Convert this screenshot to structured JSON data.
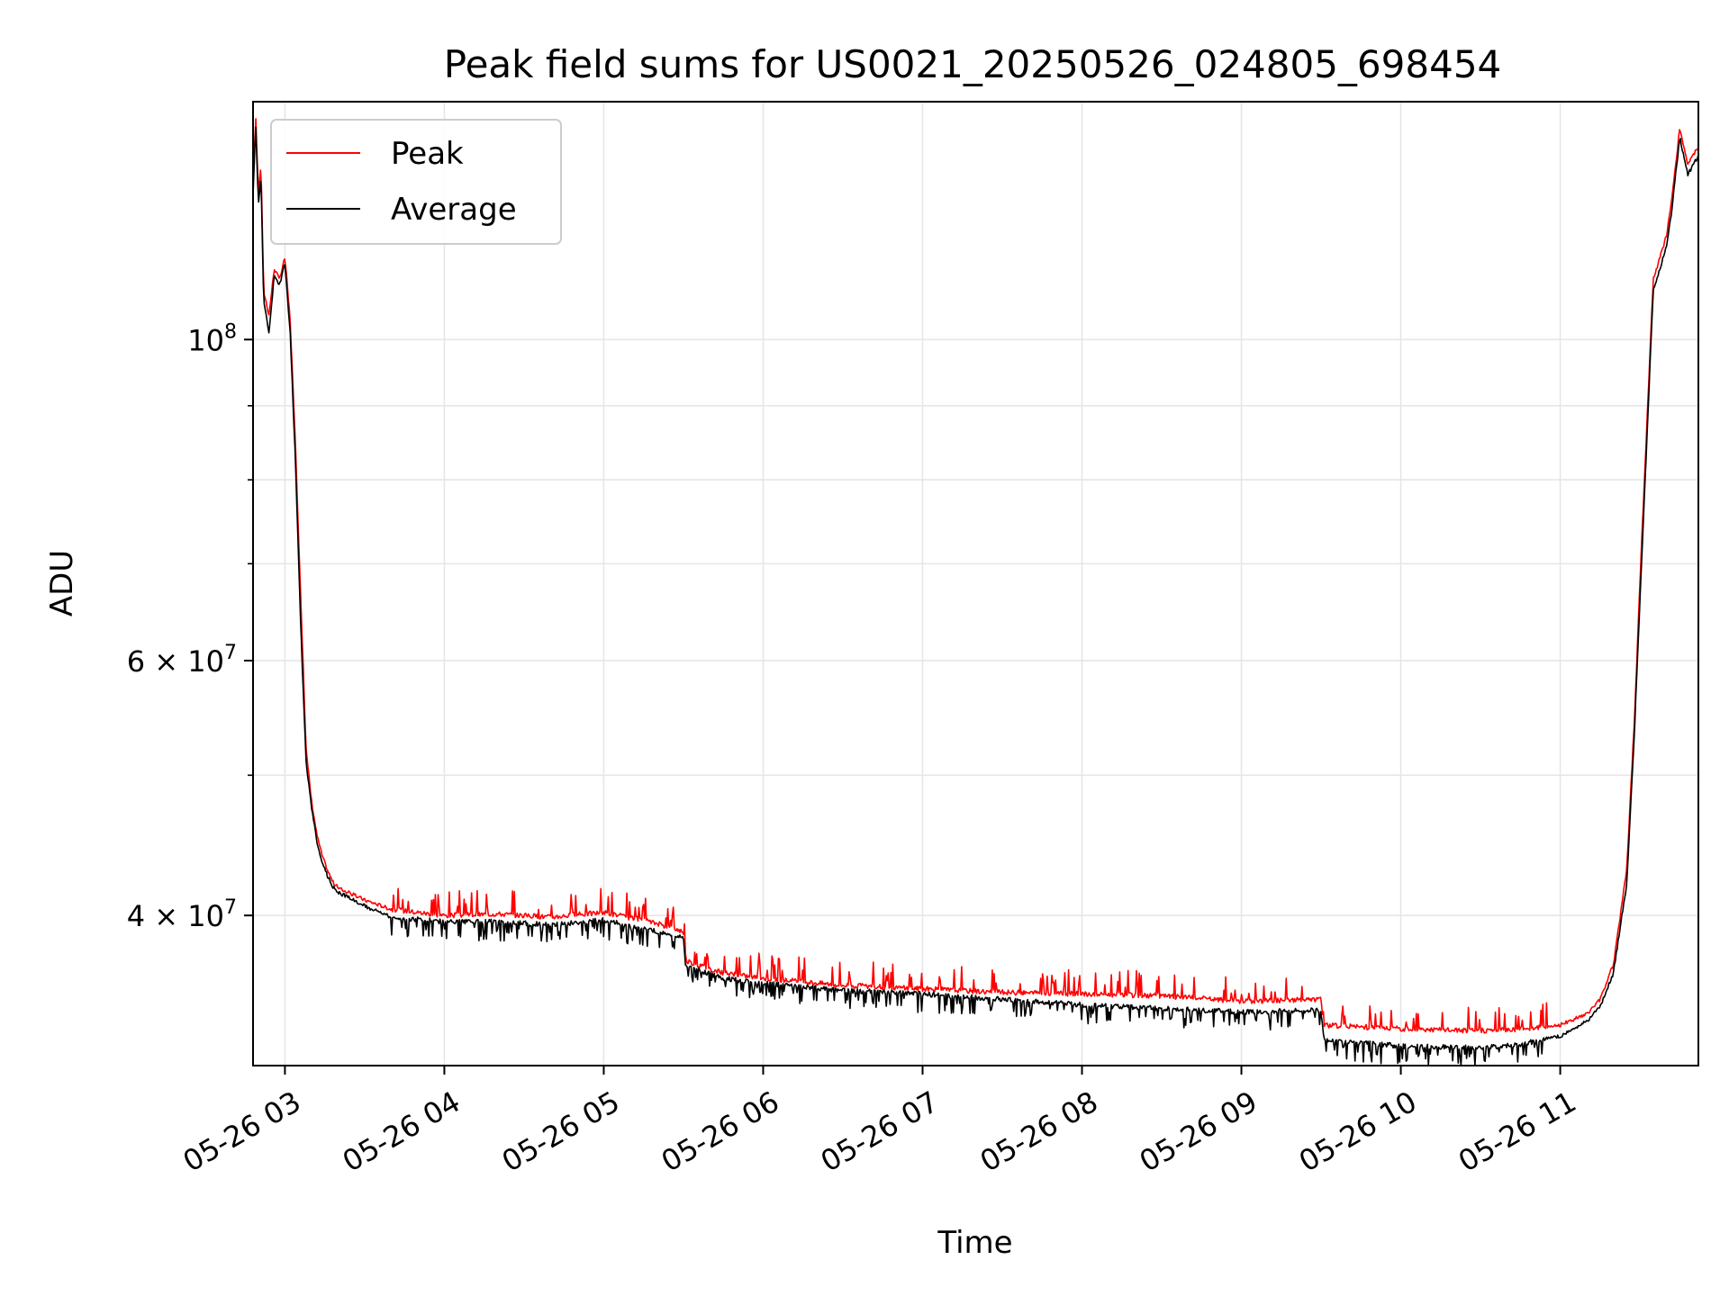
{
  "chart_data": {
    "type": "line",
    "title": "Peak field sums for US0021_20250526_024805_698454",
    "xlabel": "Time",
    "ylabel": "ADU",
    "y_scale": "log",
    "ylim": [
      31500000,
      146000000
    ],
    "x_range": [
      "05-26 02:48",
      "05-26 11:52"
    ],
    "grid": true,
    "legend_position": "top-left",
    "x_ticks": [
      "05-26 03",
      "05-26 04",
      "05-26 05",
      "05-26 06",
      "05-26 07",
      "05-26 08",
      "05-26 09",
      "05-26 10",
      "05-26 11"
    ],
    "x_tick_times": [
      "05-26 03:00",
      "05-26 04:00",
      "05-26 05:00",
      "05-26 06:00",
      "05-26 07:00",
      "05-26 08:00",
      "05-26 09:00",
      "05-26 10:00",
      "05-26 11:00"
    ],
    "y_ticks": [
      {
        "value": 40000000,
        "label": "4 × 10",
        "exp": "7"
      },
      {
        "value": 60000000,
        "label": "6 × 10",
        "exp": "7"
      },
      {
        "value": 100000000,
        "label": "10",
        "exp": "8"
      }
    ],
    "y_minor_ticks": [
      50000000,
      70000000,
      80000000,
      90000000
    ],
    "series": [
      {
        "name": "Peak",
        "color": "#ff0000",
        "x": [
          "05-26 02:48",
          "05-26 02:49",
          "05-26 02:50",
          "05-26 02:51",
          "05-26 02:52",
          "05-26 02:53",
          "05-26 02:54",
          "05-26 02:56",
          "05-26 02:58",
          "05-26 03:00",
          "05-26 03:02",
          "05-26 03:04",
          "05-26 03:06",
          "05-26 03:08",
          "05-26 03:10",
          "05-26 03:12",
          "05-26 03:14",
          "05-26 03:16",
          "05-26 03:18",
          "05-26 03:20",
          "05-26 03:25",
          "05-26 03:30",
          "05-26 03:40",
          "05-26 04:00",
          "05-26 04:20",
          "05-26 04:40",
          "05-26 05:00",
          "05-26 05:20",
          "05-26 05:30",
          "05-26 05:31",
          "05-26 05:45",
          "05-26 06:00",
          "05-26 06:30",
          "05-26 07:00",
          "05-26 07:30",
          "05-26 08:00",
          "05-26 08:30",
          "05-26 09:00",
          "05-26 09:30",
          "05-26 09:31",
          "05-26 10:00",
          "05-26 10:30",
          "05-26 10:45",
          "05-26 11:00",
          "05-26 11:10",
          "05-26 11:15",
          "05-26 11:20",
          "05-26 11:25",
          "05-26 11:28",
          "05-26 11:30",
          "05-26 11:35",
          "05-26 11:40",
          "05-26 11:42",
          "05-26 11:45",
          "05-26 11:48",
          "05-26 11:52"
        ],
        "values": [
          128000000,
          143000000,
          126000000,
          132000000,
          108000000,
          106000000,
          104000000,
          112000000,
          110000000,
          114000000,
          103000000,
          84000000,
          66000000,
          52000000,
          48000000,
          45500000,
          44000000,
          43000000,
          42200000,
          41800000,
          41400000,
          41000000,
          40400000,
          40000000,
          40100000,
          39900000,
          40200000,
          39500000,
          39000000,
          37200000,
          36500000,
          36200000,
          35800000,
          35600000,
          35400000,
          35300000,
          35200000,
          34900000,
          35000000,
          33600000,
          33400000,
          33300000,
          33400000,
          33600000,
          34200000,
          35000000,
          37000000,
          43000000,
          55000000,
          68000000,
          110000000,
          118000000,
          125000000,
          140000000,
          132000000,
          136000000
        ],
        "noise_spikes": "frequent upward spikes of ~1-3% between 05-26 03:40 and 05-26 09:30"
      },
      {
        "name": "Average",
        "color": "#000000",
        "x": [
          "05-26 02:48",
          "05-26 02:49",
          "05-26 02:50",
          "05-26 02:51",
          "05-26 02:52",
          "05-26 02:53",
          "05-26 02:54",
          "05-26 02:56",
          "05-26 02:58",
          "05-26 03:00",
          "05-26 03:02",
          "05-26 03:04",
          "05-26 03:06",
          "05-26 03:08",
          "05-26 03:10",
          "05-26 03:12",
          "05-26 03:14",
          "05-26 03:16",
          "05-26 03:18",
          "05-26 03:20",
          "05-26 03:25",
          "05-26 03:30",
          "05-26 03:40",
          "05-26 04:00",
          "05-26 04:20",
          "05-26 04:40",
          "05-26 05:00",
          "05-26 05:20",
          "05-26 05:30",
          "05-26 05:31",
          "05-26 05:45",
          "05-26 06:00",
          "05-26 06:30",
          "05-26 07:00",
          "05-26 07:30",
          "05-26 08:00",
          "05-26 08:30",
          "05-26 09:00",
          "05-26 09:30",
          "05-26 09:31",
          "05-26 10:00",
          "05-26 10:30",
          "05-26 10:45",
          "05-26 11:00",
          "05-26 11:10",
          "05-26 11:15",
          "05-26 11:20",
          "05-26 11:25",
          "05-26 11:28",
          "05-26 11:30",
          "05-26 11:35",
          "05-26 11:40",
          "05-26 11:42",
          "05-26 11:45",
          "05-26 11:48",
          "05-26 11:52"
        ],
        "values": [
          126000000,
          141000000,
          124000000,
          130000000,
          106000000,
          104000000,
          101000000,
          111000000,
          109000000,
          113000000,
          101000000,
          82000000,
          63000000,
          51000000,
          47500000,
          45000000,
          43500000,
          42600000,
          41900000,
          41500000,
          41100000,
          40600000,
          39900000,
          39600000,
          39600000,
          39400000,
          39700000,
          39000000,
          38600000,
          36900000,
          36200000,
          35900000,
          35500000,
          35300000,
          35000000,
          34700000,
          34500000,
          34300000,
          34400000,
          32800000,
          32500000,
          32400000,
          32600000,
          33000000,
          33800000,
          34600000,
          36500000,
          42000000,
          54000000,
          66000000,
          108000000,
          116000000,
          123000000,
          138000000,
          130000000,
          134000000
        ],
        "noise_spikes": "frequent downward spikes of ~1-3% between 05-26 03:40 and 05-26 10:50"
      }
    ]
  }
}
